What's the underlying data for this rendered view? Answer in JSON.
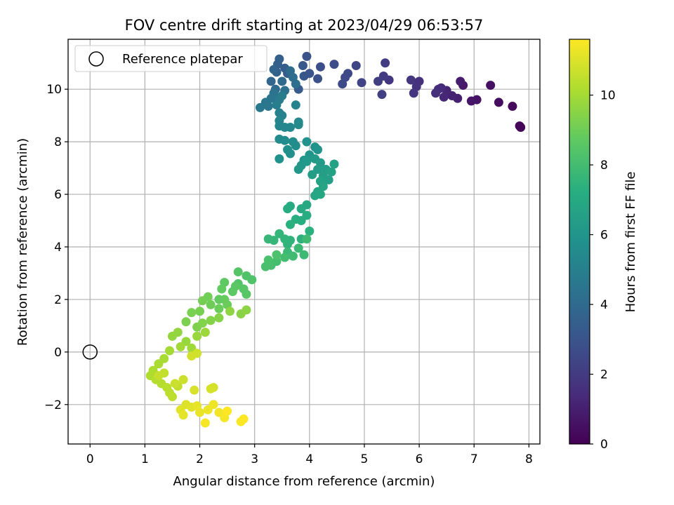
{
  "chart_data": {
    "type": "scatter",
    "title": "FOV centre drift starting at 2023/04/29 06:53:57",
    "xlabel": "Angular distance from reference (arcmin)",
    "ylabel": "Rotation from reference (arcmin)",
    "xlim": [
      -0.4,
      8.2
    ],
    "ylim": [
      -3.5,
      11.9
    ],
    "x_ticks": [
      0,
      1,
      2,
      3,
      4,
      5,
      6,
      7,
      8
    ],
    "y_ticks": [
      -2,
      0,
      2,
      4,
      6,
      8,
      10
    ],
    "x_tick_labels": [
      "0",
      "1",
      "2",
      "3",
      "4",
      "5",
      "6",
      "7",
      "8"
    ],
    "y_tick_labels": [
      "−2",
      "0",
      "2",
      "4",
      "6",
      "8",
      "10"
    ],
    "grid": true,
    "legend": {
      "position": "top-left",
      "entries": [
        "Reference platepar"
      ]
    },
    "reference_point": {
      "x": 0,
      "y": 0,
      "label": "Reference platepar"
    },
    "colorbar": {
      "label": "Hours from first FF file",
      "colormap": "viridis",
      "range": [
        0,
        11.6
      ],
      "ticks": [
        0,
        2,
        4,
        6,
        8,
        10
      ],
      "tick_labels": [
        "0",
        "2",
        "4",
        "6",
        "8",
        "10"
      ]
    },
    "points": [
      [
        7.83,
        8.6,
        0.1
      ],
      [
        7.85,
        8.55,
        0.2
      ],
      [
        7.7,
        9.35,
        0.3
      ],
      [
        7.45,
        9.5,
        0.4
      ],
      [
        7.3,
        10.15,
        0.5
      ],
      [
        7.05,
        9.6,
        0.6
      ],
      [
        6.95,
        9.55,
        0.7
      ],
      [
        6.8,
        10.15,
        0.8
      ],
      [
        6.75,
        10.3,
        0.9
      ],
      [
        6.7,
        9.65,
        1.0
      ],
      [
        6.6,
        9.75,
        1.1
      ],
      [
        6.5,
        9.95,
        1.2
      ],
      [
        6.45,
        9.7,
        1.3
      ],
      [
        6.4,
        10.05,
        1.4
      ],
      [
        6.35,
        10.0,
        1.5
      ],
      [
        6.3,
        9.85,
        1.55
      ],
      [
        6.0,
        10.3,
        1.6
      ],
      [
        5.95,
        10.1,
        1.7
      ],
      [
        5.9,
        9.85,
        1.8
      ],
      [
        5.85,
        10.35,
        1.85
      ],
      [
        5.45,
        10.35,
        1.9
      ],
      [
        5.35,
        10.5,
        2.0
      ],
      [
        5.38,
        11.0,
        2.05
      ],
      [
        5.25,
        10.3,
        2.1
      ],
      [
        5.32,
        9.8,
        2.2
      ],
      [
        4.95,
        10.25,
        2.3
      ],
      [
        4.85,
        10.9,
        2.4
      ],
      [
        4.7,
        10.6,
        2.5
      ],
      [
        4.65,
        10.45,
        2.55
      ],
      [
        4.6,
        10.2,
        2.6
      ],
      [
        4.45,
        10.95,
        2.7
      ],
      [
        4.2,
        10.85,
        2.8
      ],
      [
        4.15,
        10.4,
        2.9
      ],
      [
        3.95,
        11.25,
        3.0
      ],
      [
        4.0,
        10.6,
        3.05
      ],
      [
        3.9,
        10.5,
        3.1
      ],
      [
        3.88,
        10.9,
        3.2
      ],
      [
        3.8,
        10.0,
        3.3
      ],
      [
        3.6,
        10.6,
        3.4
      ],
      [
        3.55,
        10.8,
        3.45
      ],
      [
        3.45,
        11.15,
        3.5
      ],
      [
        3.42,
        10.95,
        3.55
      ],
      [
        3.4,
        10.65,
        3.6
      ],
      [
        3.35,
        10.75,
        3.7
      ],
      [
        3.3,
        10.3,
        3.8
      ],
      [
        3.38,
        10.0,
        3.9
      ],
      [
        3.5,
        10.3,
        4.0
      ],
      [
        3.65,
        10.7,
        4.05
      ],
      [
        3.7,
        10.45,
        4.1
      ],
      [
        3.75,
        10.2,
        4.2
      ],
      [
        3.55,
        9.95,
        4.3
      ],
      [
        3.35,
        9.85,
        4.4
      ],
      [
        3.3,
        9.65,
        4.5
      ],
      [
        3.2,
        9.5,
        4.55
      ],
      [
        3.25,
        9.35,
        4.6
      ],
      [
        3.1,
        9.3,
        4.7
      ],
      [
        3.45,
        9.6,
        4.8
      ],
      [
        3.5,
        9.75,
        4.85
      ],
      [
        3.4,
        9.4,
        4.9
      ],
      [
        3.45,
        9.1,
        5.0
      ],
      [
        3.5,
        9.0,
        5.05
      ],
      [
        3.75,
        9.4,
        5.1
      ],
      [
        3.45,
        8.8,
        5.2
      ],
      [
        3.45,
        8.6,
        5.25
      ],
      [
        3.55,
        8.55,
        5.3
      ],
      [
        3.65,
        8.55,
        5.35
      ],
      [
        3.8,
        8.75,
        5.4
      ],
      [
        3.8,
        8.65,
        5.45
      ],
      [
        3.45,
        8.1,
        5.5
      ],
      [
        3.55,
        8.05,
        5.55
      ],
      [
        3.7,
        8.0,
        5.6
      ],
      [
        3.75,
        7.85,
        5.65
      ],
      [
        3.6,
        7.7,
        5.7
      ],
      [
        3.65,
        7.55,
        5.75
      ],
      [
        3.45,
        7.35,
        5.8
      ],
      [
        3.95,
        8.0,
        5.85
      ],
      [
        4.1,
        7.8,
        5.9
      ],
      [
        4.15,
        7.7,
        5.95
      ],
      [
        4.0,
        7.5,
        6.0
      ],
      [
        3.9,
        7.3,
        6.05
      ],
      [
        3.85,
        7.1,
        6.1
      ],
      [
        3.8,
        6.95,
        6.15
      ],
      [
        3.95,
        7.25,
        6.2
      ],
      [
        4.1,
        7.35,
        6.25
      ],
      [
        4.2,
        7.2,
        6.3
      ],
      [
        4.15,
        6.95,
        6.35
      ],
      [
        4.05,
        6.75,
        6.4
      ],
      [
        4.3,
        6.95,
        6.45
      ],
      [
        4.25,
        6.7,
        6.5
      ],
      [
        4.35,
        6.55,
        6.55
      ],
      [
        4.45,
        7.15,
        6.6
      ],
      [
        4.4,
        6.85,
        6.65
      ],
      [
        4.2,
        6.5,
        6.7
      ],
      [
        4.25,
        6.3,
        6.75
      ],
      [
        4.15,
        6.1,
        6.8
      ],
      [
        4.1,
        5.95,
        6.85
      ],
      [
        4.2,
        6.0,
        6.9
      ],
      [
        3.95,
        5.6,
        6.95
      ],
      [
        3.85,
        5.45,
        7.0
      ],
      [
        3.65,
        5.55,
        7.05
      ],
      [
        3.6,
        5.45,
        7.1
      ],
      [
        3.95,
        5.2,
        7.15
      ],
      [
        3.85,
        5.0,
        7.2
      ],
      [
        3.75,
        5.05,
        7.25
      ],
      [
        3.65,
        4.85,
        7.3
      ],
      [
        4.0,
        4.6,
        7.35
      ],
      [
        3.85,
        4.3,
        7.4
      ],
      [
        3.65,
        4.25,
        7.45
      ],
      [
        3.6,
        4.1,
        7.5
      ],
      [
        3.55,
        4.3,
        7.55
      ],
      [
        3.45,
        4.5,
        7.6
      ],
      [
        3.35,
        4.25,
        7.65
      ],
      [
        3.25,
        4.3,
        7.7
      ],
      [
        3.6,
        3.8,
        7.75
      ],
      [
        3.8,
        3.95,
        7.8
      ],
      [
        3.9,
        3.7,
        7.85
      ],
      [
        3.95,
        4.3,
        7.9
      ],
      [
        3.7,
        3.65,
        7.95
      ],
      [
        3.55,
        3.6,
        8.0
      ],
      [
        3.4,
        3.45,
        8.05
      ],
      [
        3.3,
        3.3,
        8.1
      ],
      [
        3.2,
        3.25,
        8.15
      ],
      [
        3.25,
        3.5,
        8.2
      ],
      [
        3.4,
        3.7,
        8.25
      ],
      [
        2.95,
        2.75,
        8.3
      ],
      [
        2.85,
        2.9,
        8.35
      ],
      [
        2.7,
        2.6,
        8.4
      ],
      [
        2.7,
        3.05,
        8.45
      ],
      [
        2.8,
        2.4,
        8.5
      ],
      [
        2.85,
        2.2,
        8.55
      ],
      [
        2.65,
        2.5,
        8.6
      ],
      [
        2.6,
        2.3,
        8.65
      ],
      [
        2.45,
        2.65,
        8.7
      ],
      [
        2.4,
        2.4,
        8.75
      ],
      [
        2.35,
        2.0,
        8.8
      ],
      [
        2.45,
        2.0,
        8.85
      ],
      [
        2.5,
        1.8,
        8.9
      ],
      [
        2.35,
        1.65,
        8.95
      ],
      [
        2.2,
        1.8,
        9.0
      ],
      [
        2.15,
        2.1,
        9.05
      ],
      [
        2.05,
        1.95,
        9.1
      ],
      [
        2.0,
        1.55,
        9.15
      ],
      [
        1.85,
        1.5,
        9.2
      ],
      [
        1.75,
        1.15,
        9.25
      ],
      [
        1.95,
        0.95,
        9.3
      ],
      [
        2.05,
        1.1,
        9.35
      ],
      [
        2.2,
        1.2,
        9.4
      ],
      [
        2.35,
        1.3,
        9.45
      ],
      [
        2.75,
        1.45,
        9.5
      ],
      [
        2.85,
        1.6,
        9.55
      ],
      [
        2.55,
        1.55,
        9.6
      ],
      [
        1.6,
        0.75,
        9.65
      ],
      [
        1.5,
        0.6,
        9.7
      ],
      [
        1.75,
        0.4,
        9.75
      ],
      [
        1.95,
        0.6,
        9.8
      ],
      [
        2.1,
        0.75,
        9.85
      ],
      [
        1.85,
        0.15,
        9.9
      ],
      [
        1.65,
        0.2,
        9.95
      ],
      [
        1.45,
        0.05,
        10.0
      ],
      [
        1.35,
        -0.25,
        10.05
      ],
      [
        1.25,
        -0.45,
        10.1
      ],
      [
        1.15,
        -0.7,
        10.15
      ],
      [
        1.1,
        -0.9,
        10.2
      ],
      [
        1.2,
        -1.05,
        10.25
      ],
      [
        1.3,
        -1.2,
        10.3
      ],
      [
        1.4,
        -1.35,
        10.35
      ],
      [
        1.45,
        -1.55,
        10.4
      ],
      [
        1.5,
        -1.7,
        10.45
      ],
      [
        1.6,
        -1.3,
        10.5
      ],
      [
        1.35,
        -0.8,
        10.55
      ],
      [
        1.25,
        -0.9,
        10.6
      ],
      [
        1.55,
        -1.2,
        10.65
      ],
      [
        1.7,
        -1.05,
        10.7
      ],
      [
        1.95,
        -0.05,
        10.75
      ],
      [
        1.85,
        -0.15,
        10.8
      ],
      [
        2.25,
        -1.35,
        10.85
      ],
      [
        2.2,
        -1.4,
        10.9
      ],
      [
        1.9,
        -1.45,
        10.95
      ],
      [
        1.75,
        -2.0,
        11.0
      ],
      [
        1.85,
        -2.1,
        11.05
      ],
      [
        1.65,
        -2.2,
        11.1
      ],
      [
        1.7,
        -2.4,
        11.15
      ],
      [
        1.95,
        -2.05,
        11.2
      ],
      [
        2.0,
        -2.3,
        11.25
      ],
      [
        2.15,
        -2.2,
        11.3
      ],
      [
        2.25,
        -2.0,
        11.35
      ],
      [
        2.35,
        -2.3,
        11.4
      ],
      [
        2.45,
        -2.5,
        11.45
      ],
      [
        2.1,
        -2.7,
        11.5
      ],
      [
        2.75,
        -2.65,
        11.55
      ],
      [
        2.8,
        -2.55,
        11.6
      ],
      [
        2.5,
        -2.25,
        11.6
      ]
    ]
  }
}
